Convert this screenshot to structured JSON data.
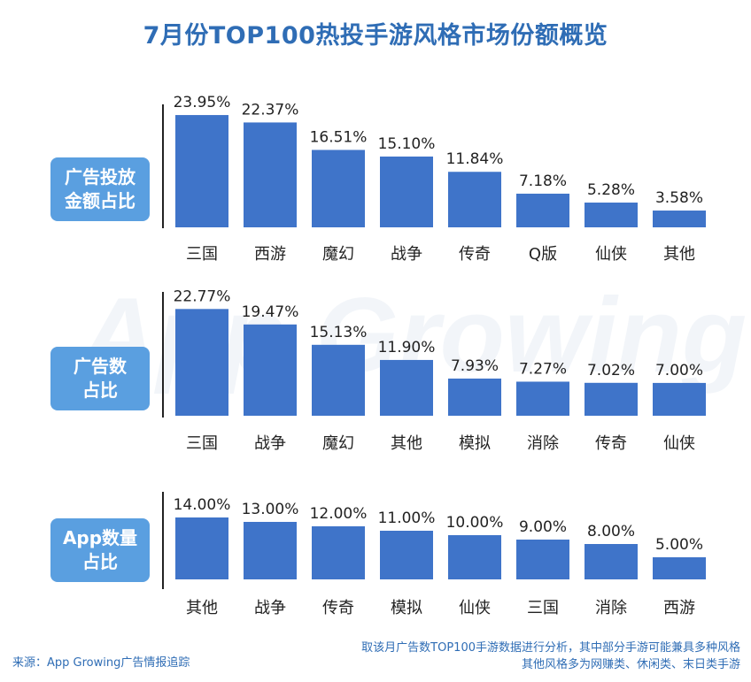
{
  "title": "7月份TOP100热投手游风格市场份额概览",
  "watermark": "App Growing",
  "colors": {
    "bar": "#3f74c9",
    "title": "#2f6db5",
    "label_bg": "#5a9fe0"
  },
  "chart_data": [
    {
      "type": "bar",
      "label_lines": [
        "广告投放",
        "金额占比"
      ],
      "categories": [
        "三国",
        "西游",
        "魔幻",
        "战争",
        "传奇",
        "Q版",
        "仙侠",
        "其他"
      ],
      "values": [
        23.95,
        22.37,
        16.51,
        15.1,
        11.84,
        7.18,
        5.28,
        3.58
      ],
      "value_labels": [
        "23.95%",
        "22.37%",
        "16.51%",
        "15.10%",
        "11.84%",
        "7.18%",
        "5.28%",
        "3.58%"
      ]
    },
    {
      "type": "bar",
      "label_lines": [
        "广告数",
        "占比"
      ],
      "categories": [
        "三国",
        "战争",
        "魔幻",
        "其他",
        "模拟",
        "消除",
        "传奇",
        "仙侠"
      ],
      "values": [
        22.77,
        19.47,
        15.13,
        11.9,
        7.93,
        7.27,
        7.02,
        7.0
      ],
      "value_labels": [
        "22.77%",
        "19.47%",
        "15.13%",
        "11.90%",
        "7.93%",
        "7.27%",
        "7.02%",
        "7.00%"
      ]
    },
    {
      "type": "bar",
      "label_lines": [
        "App数量",
        "占比"
      ],
      "categories": [
        "其他",
        "战争",
        "传奇",
        "模拟",
        "仙侠",
        "三国",
        "消除",
        "西游"
      ],
      "values": [
        14.0,
        13.0,
        12.0,
        11.0,
        10.0,
        9.0,
        8.0,
        5.0
      ],
      "value_labels": [
        "14.00%",
        "13.00%",
        "12.00%",
        "11.00%",
        "10.00%",
        "9.00%",
        "8.00%",
        "5.00%"
      ]
    }
  ],
  "footer": {
    "source": "来源：App Growing广告情报追踪",
    "note_line1": "取该月广告数TOP100手游数据进行分析，其中部分手游可能兼具多种风格",
    "note_line2": "其他风格多为网赚类、休闲类、末日类手游"
  }
}
